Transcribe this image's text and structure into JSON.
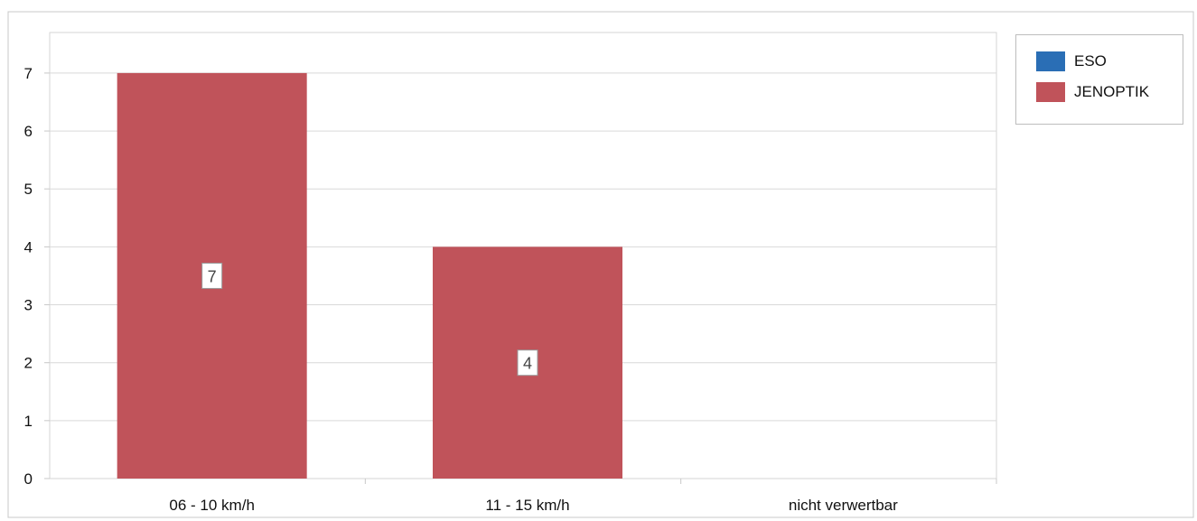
{
  "colors": {
    "eso": "#2a6eb5",
    "jenoptik": "#c0535a",
    "grid": "#d9d9d9",
    "axis": "#c8c8c8",
    "text": "#111111"
  },
  "chart_data": {
    "type": "bar",
    "categories": [
      "06 - 10 km/h",
      "11 - 15 km/h",
      "nicht verwertbar"
    ],
    "series": [
      {
        "name": "ESO",
        "values": [
          0,
          0,
          0
        ]
      },
      {
        "name": "JENOPTIK",
        "values": [
          7,
          4,
          0
        ]
      }
    ],
    "data_labels": [
      "7",
      "4",
      ""
    ],
    "yticks": [
      "0",
      "1",
      "2",
      "3",
      "4",
      "5",
      "6",
      "7"
    ],
    "ylim": [
      0,
      7.7
    ],
    "grid": true,
    "legend": "top-right",
    "title": "",
    "xlabel": "",
    "ylabel": ""
  }
}
